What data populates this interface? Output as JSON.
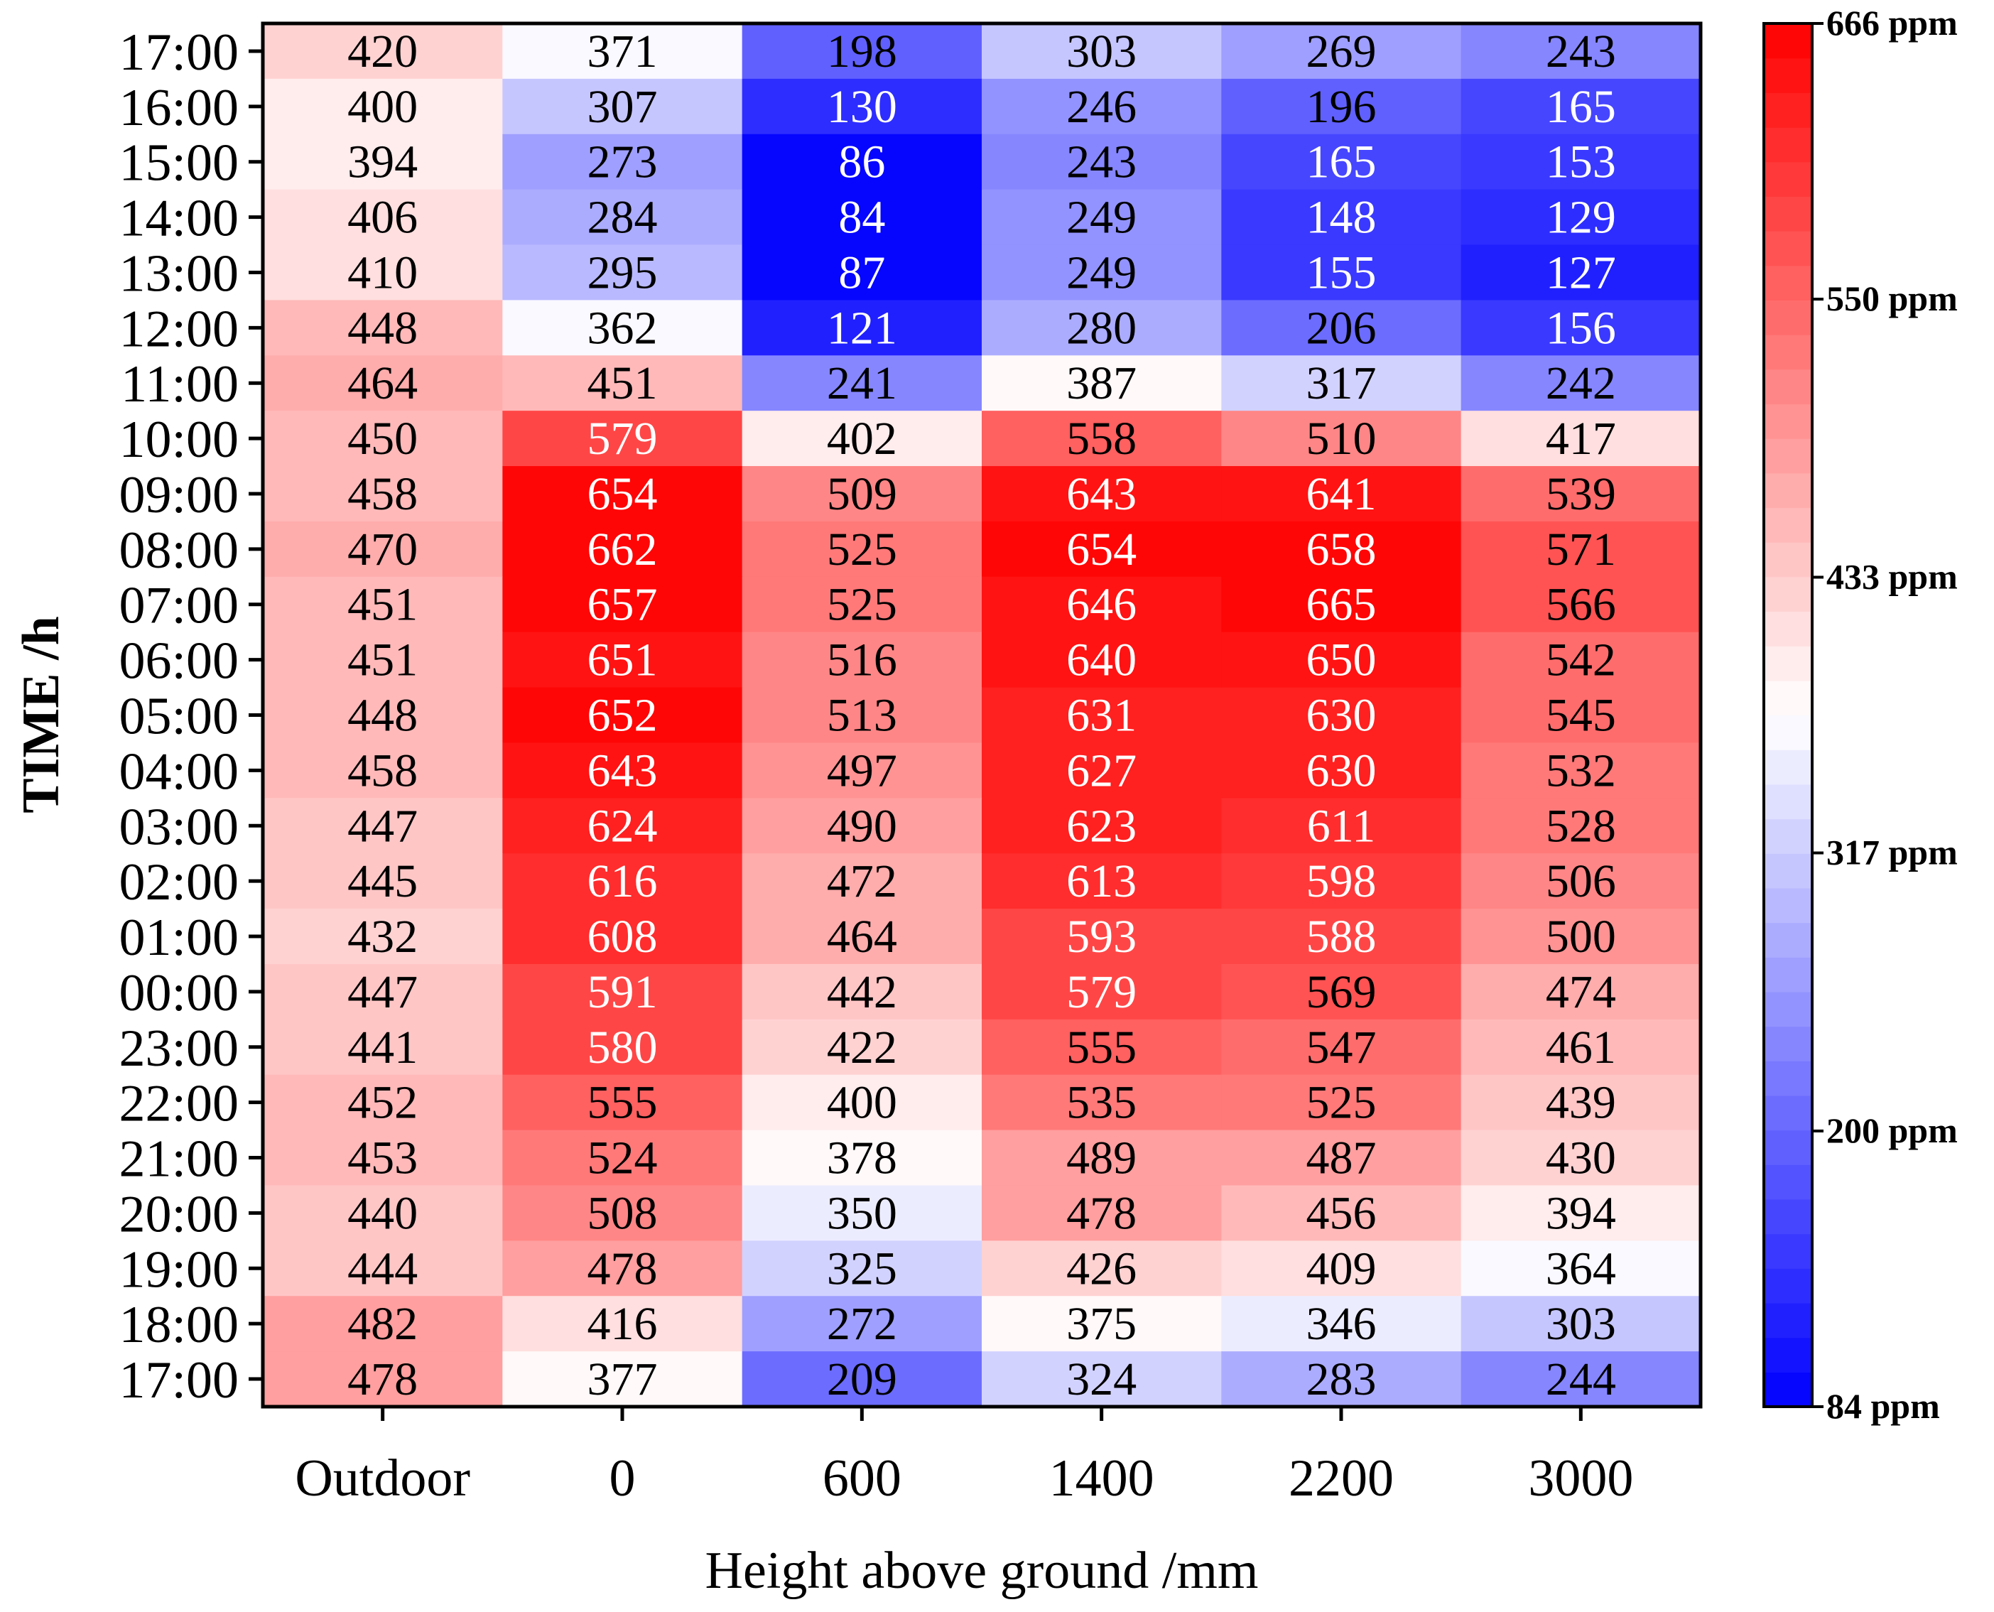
{
  "chart_data": {
    "type": "heatmap",
    "title": "",
    "xlabel": "Height above ground /mm",
    "ylabel": "TIME /h",
    "x_categories": [
      "Outdoor",
      "0",
      "600",
      "1400",
      "2200",
      "3000"
    ],
    "y_categories": [
      "17:00",
      "16:00",
      "15:00",
      "14:00",
      "13:00",
      "12:00",
      "11:00",
      "10:00",
      "09:00",
      "08:00",
      "07:00",
      "06:00",
      "05:00",
      "04:00",
      "03:00",
      "02:00",
      "01:00",
      "00:00",
      "23:00",
      "22:00",
      "21:00",
      "20:00",
      "19:00",
      "18:00",
      "17:00"
    ],
    "values": [
      [
        420,
        371,
        198,
        303,
        269,
        243
      ],
      [
        400,
        307,
        130,
        246,
        196,
        165
      ],
      [
        394,
        273,
        86,
        243,
        165,
        153
      ],
      [
        406,
        284,
        84,
        249,
        148,
        129
      ],
      [
        410,
        295,
        87,
        249,
        155,
        127
      ],
      [
        448,
        362,
        121,
        280,
        206,
        156
      ],
      [
        464,
        451,
        241,
        387,
        317,
        242
      ],
      [
        450,
        579,
        402,
        558,
        510,
        417
      ],
      [
        458,
        654,
        509,
        643,
        641,
        539
      ],
      [
        470,
        662,
        525,
        654,
        658,
        571
      ],
      [
        451,
        657,
        525,
        646,
        665,
        566
      ],
      [
        451,
        651,
        516,
        640,
        650,
        542
      ],
      [
        448,
        652,
        513,
        631,
        630,
        545
      ],
      [
        458,
        643,
        497,
        627,
        630,
        532
      ],
      [
        447,
        624,
        490,
        623,
        611,
        528
      ],
      [
        445,
        616,
        472,
        613,
        598,
        506
      ],
      [
        432,
        608,
        464,
        593,
        588,
        500
      ],
      [
        447,
        591,
        442,
        579,
        569,
        474
      ],
      [
        441,
        580,
        422,
        555,
        547,
        461
      ],
      [
        452,
        555,
        400,
        535,
        525,
        439
      ],
      [
        453,
        524,
        378,
        489,
        487,
        430
      ],
      [
        440,
        508,
        350,
        478,
        456,
        394
      ],
      [
        444,
        478,
        325,
        426,
        409,
        364
      ],
      [
        482,
        416,
        272,
        375,
        346,
        303
      ],
      [
        478,
        377,
        209,
        324,
        283,
        244
      ]
    ],
    "colorbar": {
      "min": 84,
      "max": 666,
      "levels": 40,
      "tick_values": [
        666,
        550,
        433,
        317,
        200,
        84
      ],
      "tick_labels": [
        "666 ppm",
        "550 ppm",
        "433 ppm",
        "317 ppm",
        "200 ppm",
        "84 ppm"
      ],
      "color_low": "#0000ff",
      "color_mid": "#ffffff",
      "color_high": "#ff0000"
    }
  }
}
